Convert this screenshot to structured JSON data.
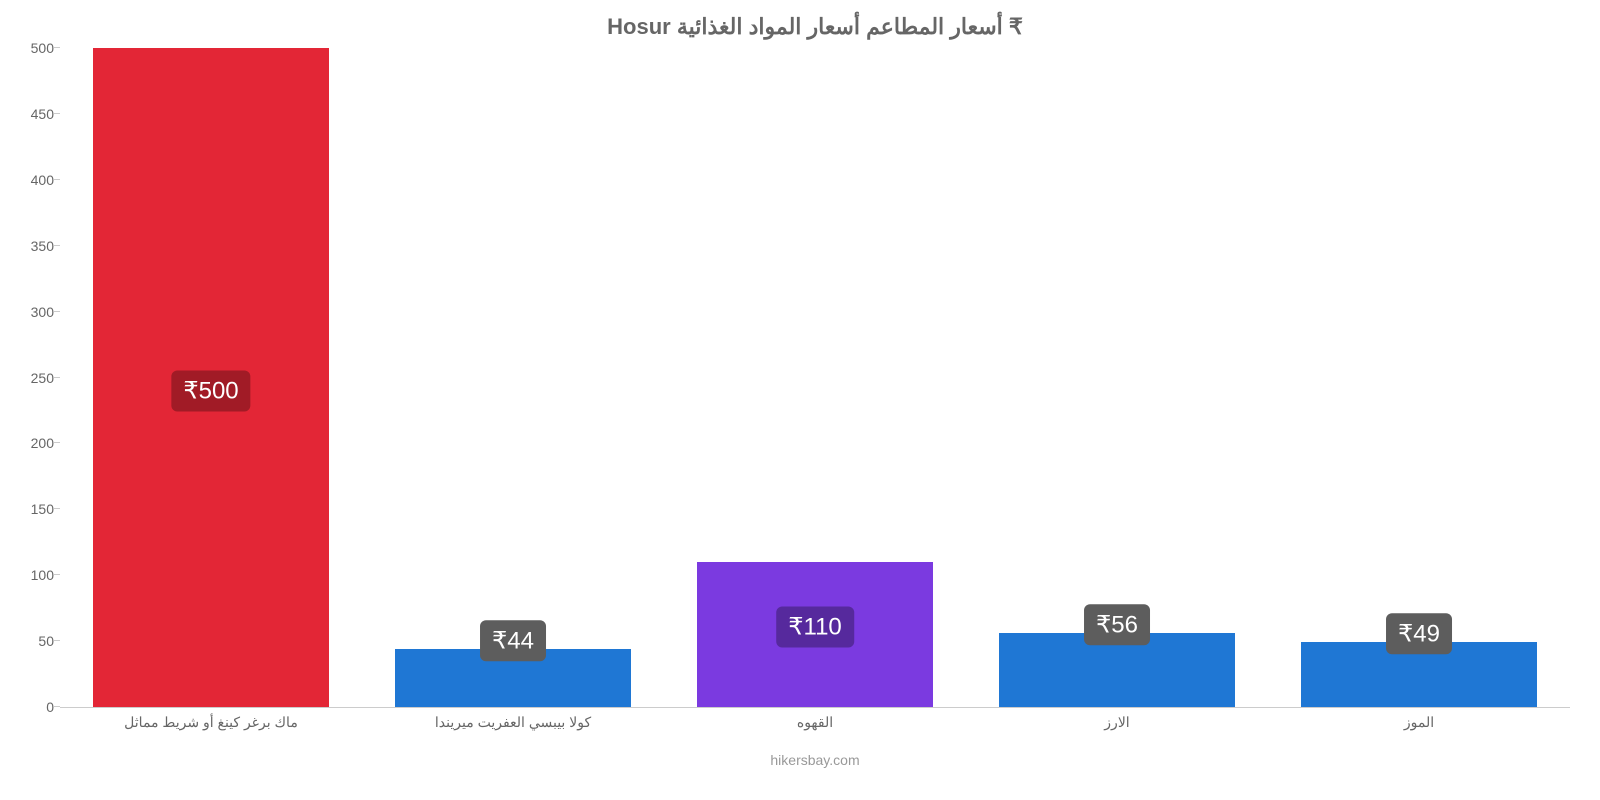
{
  "chart": {
    "type": "bar",
    "title": "₹ أسعار المطاعم أسعار المواد الغذائية Hosur",
    "title_fontsize": 22,
    "title_color": "#666666",
    "background_color": "#ffffff",
    "axis_line_color": "#cccccc",
    "tick_label_color": "#666666",
    "tick_label_fontsize": 14,
    "footer": "hikersbay.com",
    "footer_color": "#999999",
    "ylim": [
      0,
      500
    ],
    "ytick_step": 50,
    "yticks": [
      0,
      50,
      100,
      150,
      200,
      250,
      300,
      350,
      400,
      450,
      500
    ],
    "bar_width_ratio": 0.78,
    "value_prefix": "₹",
    "badge_text_color": "#ffffff",
    "badge_fontsize": 24,
    "categories": [
      {
        "label": "ماك برغر كينغ أو شريط مماثل",
        "value": 500,
        "value_text": "₹500",
        "bar_color": "#e32636",
        "badge_color": "#a11b26",
        "badge_offset_from_top": 0.52
      },
      {
        "label": "كولا بيبسي العفريت ميريندا",
        "value": 44,
        "value_text": "₹44",
        "bar_color": "#1f77d4",
        "badge_color": "#5d5d5d",
        "badge_offset_from_top": 0.0
      },
      {
        "label": "القهوه",
        "value": 110,
        "value_text": "₹110",
        "bar_color": "#7b3ae0",
        "badge_color": "#56299d",
        "badge_offset_from_top": 0.45
      },
      {
        "label": "الارز",
        "value": 56,
        "value_text": "₹56",
        "bar_color": "#1f77d4",
        "badge_color": "#5d5d5d",
        "badge_offset_from_top": 0.0
      },
      {
        "label": "الموز",
        "value": 49,
        "value_text": "₹49",
        "bar_color": "#1f77d4",
        "badge_color": "#5d5d5d",
        "badge_offset_from_top": 0.0
      }
    ]
  }
}
